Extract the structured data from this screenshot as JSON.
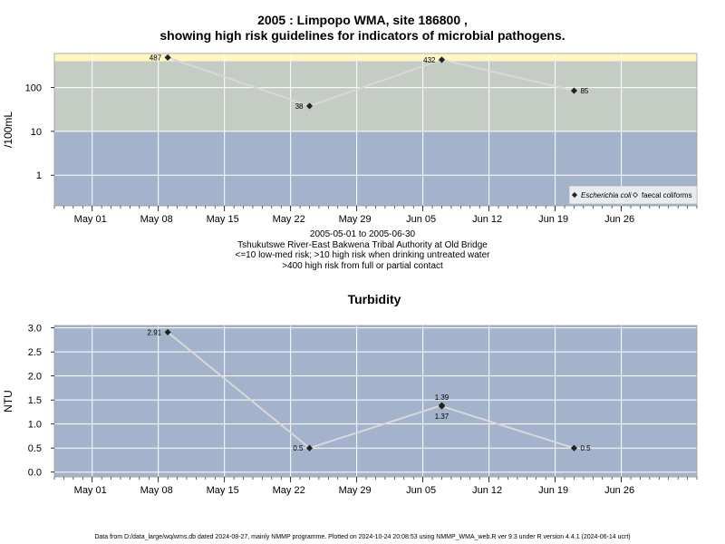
{
  "header": {
    "title_line1": "2005 : Limpopo WMA, site 186800 ,",
    "title_line2": "showing high risk guidelines for indicators of microbial pathogens."
  },
  "caption": {
    "line1": "2005-05-01 to 2005-06-30",
    "line2": "Tshukutswe River-East Bakwena Tribal Authority at Old Bridge",
    "line3": "<=10 low-med risk; >10 high risk when drinking untreated water",
    "line4": ">400 high risk from full or partial contact"
  },
  "footer": {
    "text": "Data from D:/data_large/wq/wms.db dated 2024-08-27, mainly NMMP programme. Plotted on 2024-10-24 20:08:53 using NMMP_WMA_web.R ver 9.3 under R version 4.4.1 (2024-06-14 ucrt)"
  },
  "colors": {
    "low_band": "#a3b3cc",
    "high_band": "#c4ccc4",
    "very_high_band": "#fff6c2",
    "line": "#d8d8d8",
    "point": "#222222",
    "grid": "#ffffff"
  },
  "chart_data": [
    {
      "type": "scatter",
      "title": "",
      "ylabel": "/100mL",
      "yscale": "log",
      "xlim": [
        "2005-04-27",
        "2005-07-04"
      ],
      "ylim": [
        0.2,
        600
      ],
      "yticks": [
        1,
        10,
        100
      ],
      "ytick_labels": [
        "1",
        "10",
        "100"
      ],
      "xticks": [
        "2005-05-01",
        "2005-05-08",
        "2005-05-15",
        "2005-05-22",
        "2005-05-29",
        "2005-06-05",
        "2005-06-12",
        "2005-06-19",
        "2005-06-26"
      ],
      "xtick_labels": [
        "May 01",
        "May 08",
        "May 15",
        "May 22",
        "May 29",
        "Jun 05",
        "Jun 12",
        "Jun 19",
        "Jun 26"
      ],
      "bands": [
        {
          "from": 0.2,
          "to": 10,
          "color": "#a3b3cc"
        },
        {
          "from": 10,
          "to": 400,
          "color": "#c4ccc4"
        },
        {
          "from": 400,
          "to": 600,
          "color": "#fff6c2"
        }
      ],
      "legend_position": "bottom-right",
      "series": [
        {
          "name": "Escherichia coli",
          "marker": "filled-diamond",
          "points": [
            {
              "x": "2005-05-09",
              "y": 487,
              "label": "487",
              "label_side": "left"
            },
            {
              "x": "2005-05-24",
              "y": 38,
              "label": "38",
              "label_side": "left"
            },
            {
              "x": "2005-06-07",
              "y": 432,
              "label": "432",
              "label_side": "left"
            },
            {
              "x": "2005-06-21",
              "y": 85,
              "label": "85",
              "label_side": "right"
            }
          ]
        },
        {
          "name": "faecal coliforms",
          "marker": "open-diamond",
          "points": []
        }
      ]
    },
    {
      "type": "scatter",
      "title": "Turbidity",
      "ylabel": "NTU",
      "yscale": "linear",
      "xlim": [
        "2005-04-27",
        "2005-07-04"
      ],
      "ylim": [
        -0.1,
        3.05
      ],
      "yticks": [
        0,
        0.5,
        1,
        1.5,
        2,
        2.5,
        3
      ],
      "ytick_labels": [
        "0.0",
        "0.5",
        "1.0",
        "1.5",
        "2.0",
        "2.5",
        "3.0"
      ],
      "xticks": [
        "2005-05-01",
        "2005-05-08",
        "2005-05-15",
        "2005-05-22",
        "2005-05-29",
        "2005-06-05",
        "2005-06-12",
        "2005-06-19",
        "2005-06-26"
      ],
      "xtick_labels": [
        "May 01",
        "May 08",
        "May 15",
        "May 22",
        "May 29",
        "Jun 05",
        "Jun 12",
        "Jun 19",
        "Jun 26"
      ],
      "bands": [
        {
          "from": -0.1,
          "to": 3.05,
          "color": "#a3b3cc"
        }
      ],
      "series": [
        {
          "name": "",
          "marker": "filled-diamond",
          "points": [
            {
              "x": "2005-05-09",
              "y": 2.91,
              "label": "2.91",
              "label_side": "left"
            },
            {
              "x": "2005-05-24",
              "y": 0.5,
              "label": "0.5",
              "label_side": "left"
            },
            {
              "x": "2005-06-07",
              "y": 1.39,
              "label": "1.39",
              "label_side": "above"
            },
            {
              "x": "2005-06-07",
              "y": 1.37,
              "label": "1.37",
              "label_side": "below"
            },
            {
              "x": "2005-06-21",
              "y": 0.5,
              "label": "0.5",
              "label_side": "right"
            }
          ]
        }
      ]
    }
  ]
}
